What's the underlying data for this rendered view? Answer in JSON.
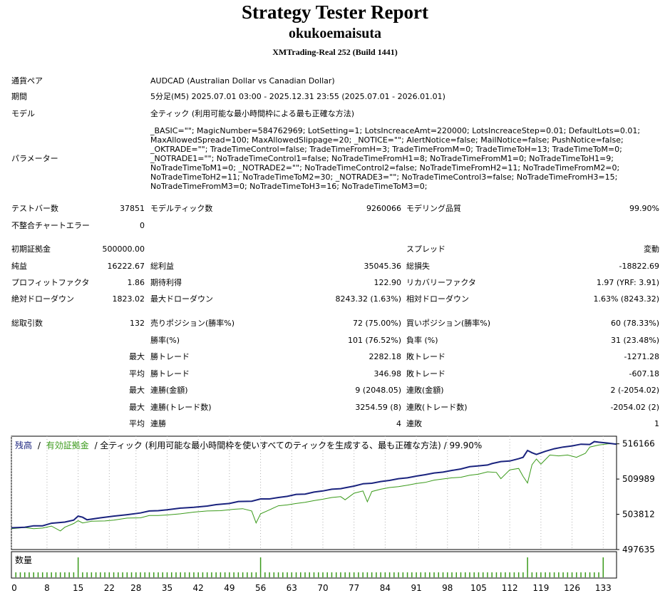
{
  "header": {
    "title": "Strategy Tester Report",
    "name": "okukoemaisuta",
    "server": "XMTrading-Real 252 (Build 1441)"
  },
  "info": [
    {
      "label": "通貨ペア",
      "value": "AUDCAD (Australian Dollar vs Canadian Dollar)"
    },
    {
      "label": "期間",
      "value": "5分足(M5) 2025.07.01 03:00 - 2025.12.31 23:55 (2025.07.01 - 2026.01.01)"
    },
    {
      "label": "モデル",
      "value": "全ティック (利用可能な最小時間枠による最も正確な方法)"
    }
  ],
  "parameters": {
    "label": "パラメーター",
    "value": "_BASIC=\"\"; MagicNumber=584762969; LotSetting=1; LotsIncreaceAmt=220000; LotsIncreaceStep=0.01; DefaultLots=0.01; MaxAllowedSpread=100; MaxAllowedSlippage=20; _NOTICE=\"\"; AlertNotice=false; MailNotice=false; PushNotice=false; _OKTRADE=\"\"; TradeTimeControl=false; TradeTimeFromH=3; TradeTimeFromM=0; TradeTimeToH=13; TradeTimeToM=0; _NOTRADE1=\"\"; NoTradeTimeControl1=false; NoTradeTimeFromH1=8; NoTradeTimeFromM1=0; NoTradeTimeToH1=9; NoTradeTimeToM1=0; _NOTRADE2=\"\"; NoTradeTimeControl2=false; NoTradeTimeFromH2=11; NoTradeTimeFromM2=0; NoTradeTimeToH2=11; NoTradeTimeToM2=30; _NOTRADE3=\"\"; NoTradeTimeControl3=false; NoTradeTimeFromH3=15; NoTradeTimeFromM3=0; NoTradeTimeToH3=16; NoTradeTimeToM3=0;"
  },
  "stats": {
    "bars": {
      "l1": "テストバー数",
      "v1": "37851",
      "l2": "モデルティック数",
      "v2": "9260066",
      "l3": "モデリング品質",
      "v3": "99.90%"
    },
    "mismatch": {
      "l1": "不整合チャートエラー",
      "v1": "0"
    },
    "deposit": {
      "l1": "初期証拠金",
      "v1": "500000.00",
      "l3": "スプレッド",
      "v3": "変動"
    },
    "net": {
      "l1": "純益",
      "v1": "16222.67",
      "l2": "総利益",
      "v2": "35045.36",
      "l3": "総損失",
      "v3": "-18822.69"
    },
    "pf": {
      "l1": "プロフィットファクタ",
      "v1": "1.86",
      "l2": "期待利得",
      "v2": "122.90",
      "l3": "リカバリーファクタ",
      "v3": "1.97 (YRF: 3.91)"
    },
    "dd": {
      "l1": "絶対ドローダウン",
      "v1": "1823.02",
      "l2": "最大ドローダウン",
      "v2": "8243.32 (1.63%)",
      "l3": "相対ドローダウン",
      "v3": "1.63% (8243.32)"
    },
    "trades": {
      "l1": "総取引数",
      "v1": "132",
      "l2": "売りポジション(勝率%)",
      "v2": "72 (75.00%)",
      "l3": "買いポジション(勝率%)",
      "v3": "60 (78.33%)"
    },
    "winrate": {
      "l2": "勝率(%)",
      "v2": "101 (76.52%)",
      "l3": "負率 (%)",
      "v3": "31 (23.48%)"
    },
    "max_trade": {
      "p": "最大",
      "l2": "勝トレード",
      "v2": "2282.18",
      "l3": "敗トレード",
      "v3": "-1271.28"
    },
    "avg_trade": {
      "p": "平均",
      "l2": "勝トレード",
      "v2": "346.98",
      "l3": "敗トレード",
      "v3": "-607.18"
    },
    "max_consec_amt": {
      "p": "最大",
      "l2": "連勝(金額)",
      "v2": "9 (2048.05)",
      "l3": "連敗(金額)",
      "v3": "2 (-2054.02)"
    },
    "max_consec_cnt": {
      "p": "最大",
      "l2": "連勝(トレード数)",
      "v2": "3254.59 (8)",
      "l3": "連敗(トレード数)",
      "v3": "-2054.02 (2)"
    },
    "avg_consec": {
      "p": "平均",
      "l2": "連勝",
      "v2": "4",
      "l3": "連敗",
      "v3": "1"
    }
  },
  "chart_data": {
    "type": "line",
    "legend": {
      "balance": "残高",
      "sep": "/",
      "equity": "有効証拠金",
      "rest": "/ 全ティック (利用可能な最小時間枠を使いすべてのティックを生成する、最も正確な方法) / 99.90%"
    },
    "colors": {
      "balance": "#1a237e",
      "equity": "#3a9a1a",
      "volume": "#3a9a1a"
    },
    "volume_label": "数量",
    "ylim": [
      497635,
      517500
    ],
    "y_ticks": [
      "516166",
      "509989",
      "503812",
      "497635"
    ],
    "x_ticks": [
      "0",
      "8",
      "15",
      "22",
      "28",
      "35",
      "42",
      "49",
      "56",
      "63",
      "70",
      "77",
      "84",
      "91",
      "98",
      "105",
      "112",
      "119",
      "126",
      "133"
    ],
    "xlim": [
      0,
      136
    ],
    "series": [
      {
        "name": "残高",
        "points": [
          [
            0,
            501450
          ],
          [
            3,
            501550
          ],
          [
            5,
            501800
          ],
          [
            7,
            501800
          ],
          [
            9,
            502250
          ],
          [
            12,
            502450
          ],
          [
            14,
            502800
          ],
          [
            15,
            503500
          ],
          [
            16,
            503300
          ],
          [
            17,
            502850
          ],
          [
            20,
            503200
          ],
          [
            23,
            503500
          ],
          [
            26,
            503750
          ],
          [
            29,
            504050
          ],
          [
            31,
            504400
          ],
          [
            33,
            504450
          ],
          [
            35,
            504600
          ],
          [
            38,
            504900
          ],
          [
            41,
            505050
          ],
          [
            44,
            505250
          ],
          [
            46,
            505500
          ],
          [
            49,
            505700
          ],
          [
            51,
            506050
          ],
          [
            54,
            506100
          ],
          [
            56,
            506500
          ],
          [
            58,
            506500
          ],
          [
            60,
            506750
          ],
          [
            62,
            506950
          ],
          [
            64,
            507300
          ],
          [
            66,
            507350
          ],
          [
            68,
            507700
          ],
          [
            70,
            507900
          ],
          [
            72,
            508200
          ],
          [
            74,
            508300
          ],
          [
            75,
            508450
          ],
          [
            77,
            508750
          ],
          [
            79,
            509150
          ],
          [
            81,
            509250
          ],
          [
            83,
            509550
          ],
          [
            85,
            509750
          ],
          [
            87,
            510050
          ],
          [
            89,
            510200
          ],
          [
            91,
            510500
          ],
          [
            93,
            510750
          ],
          [
            95,
            511050
          ],
          [
            97,
            511200
          ],
          [
            99,
            511500
          ],
          [
            101,
            511750
          ],
          [
            103,
            512150
          ],
          [
            105,
            512300
          ],
          [
            107,
            512450
          ],
          [
            108,
            512700
          ],
          [
            110,
            513050
          ],
          [
            112,
            513150
          ],
          [
            114,
            513550
          ],
          [
            115,
            513800
          ],
          [
            116,
            515000
          ],
          [
            117,
            514600
          ],
          [
            118,
            514300
          ],
          [
            120,
            514850
          ],
          [
            122,
            515300
          ],
          [
            124,
            515600
          ],
          [
            126,
            515800
          ],
          [
            128,
            516100
          ],
          [
            130,
            516050
          ],
          [
            131,
            516550
          ],
          [
            132,
            516450
          ],
          [
            134,
            516300
          ],
          [
            136,
            516100
          ]
        ]
      },
      {
        "name": "有効証拠金",
        "points": [
          [
            0,
            501300
          ],
          [
            3,
            501500
          ],
          [
            5,
            501300
          ],
          [
            7,
            501400
          ],
          [
            9,
            501750
          ],
          [
            11,
            500900
          ],
          [
            12,
            501550
          ],
          [
            14,
            502200
          ],
          [
            15,
            502700
          ],
          [
            16,
            502300
          ],
          [
            18,
            502600
          ],
          [
            21,
            502650
          ],
          [
            23,
            502800
          ],
          [
            26,
            503150
          ],
          [
            29,
            503200
          ],
          [
            31,
            503600
          ],
          [
            33,
            503600
          ],
          [
            35,
            503700
          ],
          [
            38,
            503900
          ],
          [
            41,
            504200
          ],
          [
            44,
            504400
          ],
          [
            47,
            504450
          ],
          [
            50,
            504700
          ],
          [
            52,
            504800
          ],
          [
            54,
            504400
          ],
          [
            55,
            502300
          ],
          [
            56,
            503900
          ],
          [
            58,
            504600
          ],
          [
            60,
            505300
          ],
          [
            62,
            505450
          ],
          [
            64,
            505700
          ],
          [
            66,
            505900
          ],
          [
            68,
            506200
          ],
          [
            70,
            506450
          ],
          [
            72,
            506750
          ],
          [
            74,
            506900
          ],
          [
            75,
            506350
          ],
          [
            77,
            507500
          ],
          [
            79,
            507900
          ],
          [
            80,
            506000
          ],
          [
            81,
            507800
          ],
          [
            83,
            508200
          ],
          [
            85,
            508500
          ],
          [
            87,
            508650
          ],
          [
            89,
            508900
          ],
          [
            91,
            509200
          ],
          [
            93,
            509400
          ],
          [
            95,
            509800
          ],
          [
            97,
            510000
          ],
          [
            99,
            510200
          ],
          [
            101,
            510300
          ],
          [
            103,
            510650
          ],
          [
            105,
            510850
          ],
          [
            107,
            511250
          ],
          [
            109,
            511150
          ],
          [
            110,
            510050
          ],
          [
            112,
            511600
          ],
          [
            114,
            511850
          ],
          [
            115,
            510450
          ],
          [
            116,
            509300
          ],
          [
            117,
            512500
          ],
          [
            118,
            513500
          ],
          [
            119,
            512600
          ],
          [
            121,
            514200
          ],
          [
            123,
            514050
          ],
          [
            125,
            514200
          ],
          [
            127,
            513800
          ],
          [
            129,
            514500
          ],
          [
            130,
            515600
          ],
          [
            132,
            515950
          ],
          [
            134,
            516150
          ],
          [
            136,
            516200
          ]
        ]
      }
    ],
    "volume_spikes": [
      15,
      56,
      116,
      133
    ]
  }
}
